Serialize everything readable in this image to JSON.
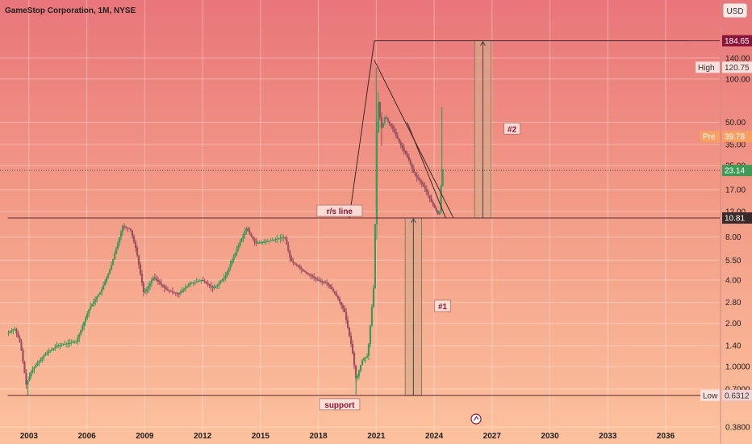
{
  "chart_data": {
    "type": "candlestick",
    "title": "GameStop Corporation, 1M, NYSE",
    "currency": "USD",
    "y_scale": "log",
    "ylim": [
      0.33,
      260
    ],
    "xlim": [
      2001.5,
      2038.8
    ],
    "x_ticks": [
      "2003",
      "2006",
      "2009",
      "2012",
      "2015",
      "2018",
      "2021",
      "2024",
      "2027",
      "2030",
      "2033",
      "2036"
    ],
    "y_ticks": [
      "140.00",
      "100.00",
      "50.00",
      "35.00",
      "25.00",
      "17.00",
      "12.00",
      "8.00",
      "5.50",
      "4.00",
      "2.80",
      "2.00",
      "1.40",
      "1.0000",
      "0.7000",
      "0.3800"
    ],
    "price_path": [
      [
        2001.9,
        1.7
      ],
      [
        2002.3,
        1.85
      ],
      [
        2002.6,
        1.45
      ],
      [
        2002.9,
        0.75
      ],
      [
        2003.2,
        0.95
      ],
      [
        2003.8,
        1.2
      ],
      [
        2004.5,
        1.4
      ],
      [
        2005.5,
        1.5
      ],
      [
        2006.2,
        2.6
      ],
      [
        2006.8,
        3.4
      ],
      [
        2007.3,
        5.0
      ],
      [
        2007.9,
        9.5
      ],
      [
        2008.3,
        9.0
      ],
      [
        2008.6,
        6.5
      ],
      [
        2009.0,
        3.2
      ],
      [
        2009.5,
        4.2
      ],
      [
        2010.2,
        3.4
      ],
      [
        2010.8,
        3.2
      ],
      [
        2011.4,
        3.8
      ],
      [
        2012.0,
        4.0
      ],
      [
        2012.6,
        3.5
      ],
      [
        2013.2,
        4.2
      ],
      [
        2013.8,
        6.5
      ],
      [
        2014.3,
        9.2
      ],
      [
        2014.8,
        7.2
      ],
      [
        2015.5,
        7.5
      ],
      [
        2016.3,
        8.0
      ],
      [
        2016.6,
        5.5
      ],
      [
        2017.3,
        4.6
      ],
      [
        2018.0,
        4.0
      ],
      [
        2018.5,
        3.8
      ],
      [
        2019.0,
        3.1
      ],
      [
        2019.4,
        2.4
      ],
      [
        2019.8,
        1.3
      ],
      [
        2020.0,
        0.8
      ],
      [
        2020.3,
        1.1
      ],
      [
        2020.6,
        1.2
      ],
      [
        2020.9,
        3.5
      ],
      [
        2021.0,
        12.0
      ],
      [
        2021.1,
        80.0
      ],
      [
        2021.3,
        45.0
      ],
      [
        2021.5,
        55.0
      ],
      [
        2021.9,
        45.0
      ],
      [
        2022.3,
        35.0
      ],
      [
        2022.7,
        28.0
      ],
      [
        2023.0,
        22.0
      ],
      [
        2023.5,
        18.0
      ],
      [
        2023.9,
        14.0
      ],
      [
        2024.1,
        12.5
      ],
      [
        2024.3,
        11.0
      ],
      [
        2024.45,
        23.14
      ]
    ],
    "wicks": [
      {
        "x": 2002.95,
        "low": 0.6312
      },
      {
        "x": 2019.95,
        "low": 0.64
      },
      {
        "x": 2021.0,
        "high": 120.75
      },
      {
        "x": 2024.4,
        "high": 64.0
      }
    ],
    "horizontal_levels": [
      {
        "name": "resistance",
        "value": 10.81,
        "label": "r/s line",
        "tag": "10.81"
      },
      {
        "name": "support",
        "value": 0.6313,
        "label": "support",
        "tag": "0.6313"
      },
      {
        "name": "target",
        "value": 184.65,
        "tag": "184.65"
      }
    ],
    "price_tags": {
      "current": "23.14",
      "pre_label": "Pre",
      "pre_value": "39.78",
      "pre_price": 39.78,
      "high_label": "High",
      "high_value": "120.75",
      "high_price": 120.75,
      "low_label": "Low",
      "low_value": "0.6312",
      "low_price": 0.6312
    },
    "measure_boxes": [
      {
        "label": "#1",
        "x_from": 2022.5,
        "x_to": 2023.35,
        "bottom": 0.6313,
        "top": 10.81
      },
      {
        "label": "#2",
        "x_from": 2026.1,
        "x_to": 2026.95,
        "bottom": 10.81,
        "top": 184.65
      }
    ],
    "trend_lines": [
      {
        "from": [
          2019.6,
          10.81
        ],
        "to": [
          2020.9,
          184.65
        ]
      },
      {
        "from": [
          2020.9,
          184.65
        ],
        "to": [
          2037.2,
          184.65
        ]
      },
      {
        "from": [
          2020.9,
          135.0
        ],
        "to": [
          2025.0,
          10.81
        ]
      },
      {
        "from": [
          2022.6,
          50.0
        ],
        "to": [
          2024.6,
          10.81
        ]
      }
    ]
  }
}
